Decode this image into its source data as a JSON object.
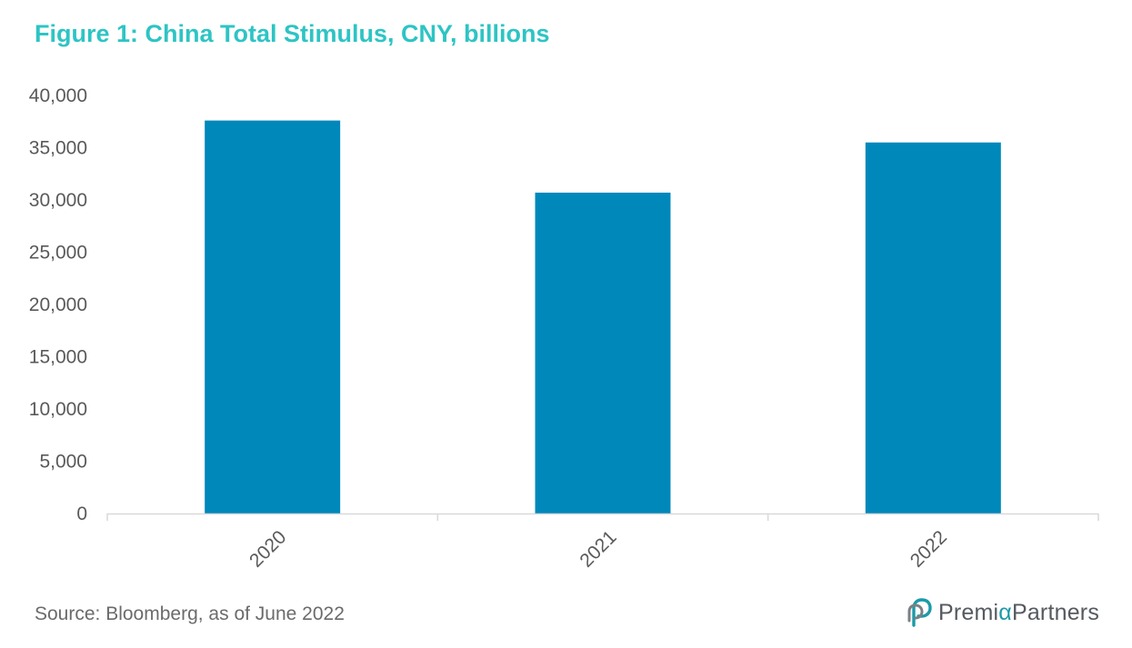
{
  "chart_data": {
    "type": "bar",
    "title": "Figure 1: China Total Stimulus, CNY, billions",
    "categories": [
      "2020",
      "2021",
      "2022"
    ],
    "values": [
      37600,
      30700,
      35500
    ],
    "ylim": [
      0,
      40000
    ],
    "yticks": [
      0,
      5000,
      10000,
      15000,
      20000,
      25000,
      30000,
      35000,
      40000
    ],
    "ytick_labels": [
      "0",
      "5,000",
      "10,000",
      "15,000",
      "20,000",
      "25,000",
      "30,000",
      "35,000",
      "40,000"
    ],
    "xlabel": "",
    "ylabel": "",
    "grid": false,
    "bar_color": "#0088bb",
    "axis_color": "#d9d9d9",
    "tick_label_color": "#595959"
  },
  "footer": {
    "source": "Source: Bloomberg, as of June 2022"
  },
  "brand": {
    "name_part1": "Premi",
    "name_alpha": "α",
    "name_part2": "Partners",
    "logo_icon": "premia-logo-icon",
    "colors": {
      "title": "#2ec4c4",
      "logo": "#1c9aa8"
    }
  }
}
